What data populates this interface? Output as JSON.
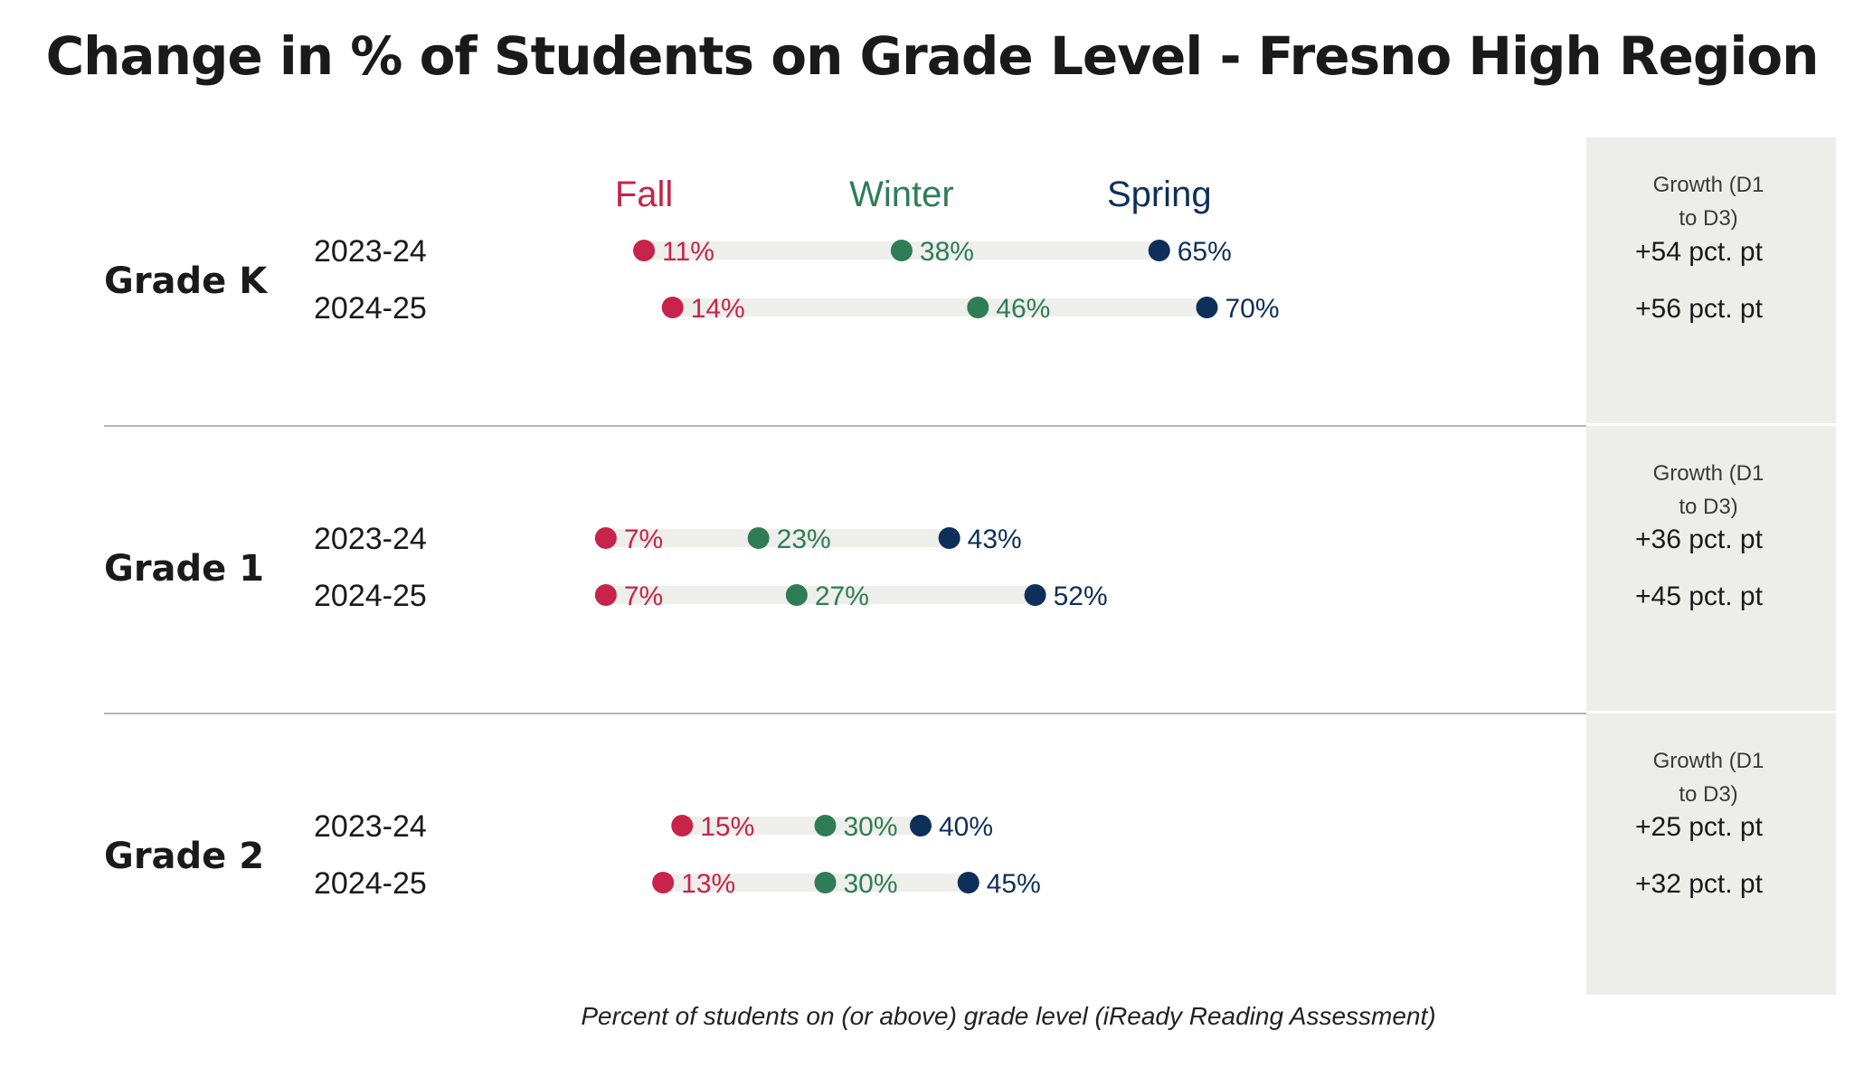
{
  "title": "Change in % of Students on Grade Level - Fresno High Region",
  "caption": "Percent of students on (or above) grade level  (iReady Reading Assessment)",
  "colors": {
    "fall": "#C8234A",
    "winter": "#2E7D57",
    "spring": "#0E2F5A",
    "track": "#EEEEEA",
    "growth_panel": "#EDEDE9",
    "divider": "#B5B5B5",
    "text": "#1A1A1A"
  },
  "chart_data": {
    "type": "dot-range",
    "value_unit": "%",
    "series": [
      {
        "name": "Fall",
        "key": "fall"
      },
      {
        "name": "Winter",
        "key": "winter"
      },
      {
        "name": "Spring",
        "key": "spring"
      }
    ],
    "growth_header": "Growth (D1 to D3)",
    "growth_unit": "pct. pt",
    "grades": [
      {
        "label": "Grade K",
        "rows": [
          {
            "year": "2023-24",
            "fall": 11,
            "winter": 38,
            "spring": 65,
            "growth": "+54"
          },
          {
            "year": "2024-25",
            "fall": 14,
            "winter": 46,
            "spring": 70,
            "growth": "+56"
          }
        ]
      },
      {
        "label": "Grade 1",
        "rows": [
          {
            "year": "2023-24",
            "fall": 7,
            "winter": 23,
            "spring": 43,
            "growth": "+36"
          },
          {
            "year": "2024-25",
            "fall": 7,
            "winter": 27,
            "spring": 52,
            "growth": "+45"
          }
        ]
      },
      {
        "label": "Grade 2",
        "rows": [
          {
            "year": "2023-24",
            "fall": 15,
            "winter": 30,
            "spring": 40,
            "growth": "+25"
          },
          {
            "year": "2024-25",
            "fall": 13,
            "winter": 30,
            "spring": 45,
            "growth": "+32"
          }
        ]
      }
    ]
  }
}
